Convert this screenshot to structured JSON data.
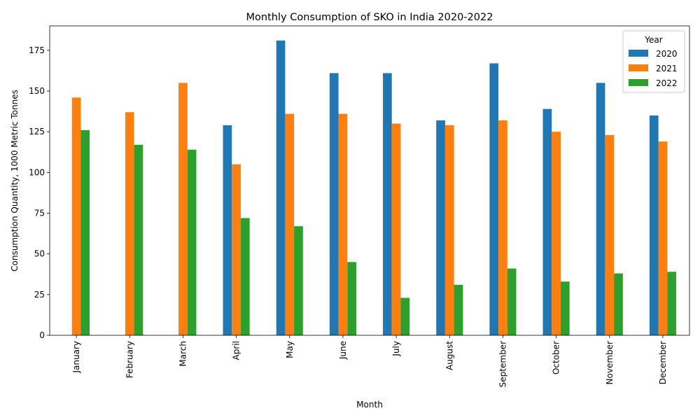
{
  "chart_data": {
    "type": "bar",
    "title": "Monthly Consumption of SKO in India 2020-2022",
    "xlabel": "Month",
    "ylabel": "Consumption Quantity, 1000 Metric Tonnes",
    "categories": [
      "January",
      "February",
      "March",
      "April",
      "May",
      "June",
      "July",
      "August",
      "September",
      "October",
      "November",
      "December"
    ],
    "ylim": [
      0,
      190
    ],
    "yticks": [
      0,
      25,
      50,
      75,
      100,
      125,
      150,
      175
    ],
    "grid": false,
    "legend": {
      "title": "Year",
      "position": "top-right"
    },
    "series": [
      {
        "name": "2020",
        "color": "#1f77b4",
        "values": [
          null,
          null,
          null,
          129,
          181,
          161,
          161,
          132,
          167,
          139,
          155,
          135
        ]
      },
      {
        "name": "2021",
        "color": "#ff7f0e",
        "values": [
          146,
          137,
          155,
          105,
          136,
          136,
          130,
          129,
          132,
          125,
          123,
          119
        ]
      },
      {
        "name": "2022",
        "color": "#2ca02c",
        "values": [
          126,
          117,
          114,
          72,
          67,
          45,
          23,
          31,
          41,
          33,
          38,
          39
        ]
      }
    ]
  }
}
